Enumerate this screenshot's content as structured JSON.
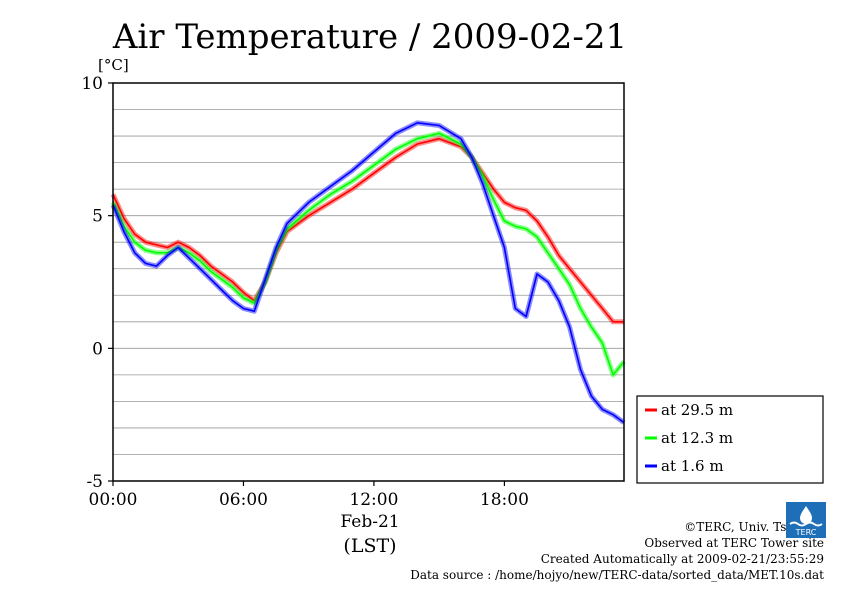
{
  "chart_data": {
    "type": "line",
    "title": "Air Temperature / 2009-02-21",
    "ylabel": "[°C]",
    "xlabel_lines": [
      "Feb-21",
      "(LST)"
    ],
    "x_ticks": [
      "00:00",
      "06:00",
      "12:00",
      "18:00"
    ],
    "x_tick_hours": [
      0,
      6,
      12,
      18
    ],
    "xlim_hours": [
      0,
      23.5
    ],
    "ylim": [
      -5,
      10
    ],
    "y_ticks": [
      10,
      5,
      0,
      -5
    ],
    "grid": true,
    "legend_position": "right-bottom-outside",
    "series": [
      {
        "name": "at 29.5 m",
        "color": "#ff0000",
        "x_hours": [
          0,
          0.5,
          1,
          1.5,
          2,
          2.5,
          3,
          3.5,
          4,
          4.5,
          5,
          5.5,
          6,
          6.5,
          7,
          7.5,
          8,
          9,
          10,
          11,
          12,
          13,
          14,
          15,
          16,
          16.5,
          17,
          17.5,
          18,
          18.5,
          19,
          19.5,
          20,
          20.5,
          21,
          21.5,
          22,
          22.5,
          23,
          23.5
        ],
        "values": [
          5.8,
          4.9,
          4.3,
          4.0,
          3.9,
          3.8,
          4.0,
          3.8,
          3.5,
          3.1,
          2.8,
          2.5,
          2.1,
          1.8,
          2.5,
          3.6,
          4.4,
          5.0,
          5.5,
          6.0,
          6.6,
          7.2,
          7.7,
          7.9,
          7.6,
          7.2,
          6.6,
          6.0,
          5.5,
          5.3,
          5.2,
          4.8,
          4.2,
          3.5,
          3.0,
          2.5,
          2.0,
          1.5,
          1.0,
          1.0
        ]
      },
      {
        "name": "at 12.3 m",
        "color": "#00ff00",
        "x_hours": [
          0,
          0.5,
          1,
          1.5,
          2,
          2.5,
          3,
          3.5,
          4,
          4.5,
          5,
          5.5,
          6,
          6.5,
          7,
          7.5,
          8,
          9,
          10,
          11,
          12,
          13,
          14,
          15,
          16,
          16.5,
          17,
          17.5,
          18,
          18.5,
          19,
          19.5,
          20,
          20.5,
          21,
          21.5,
          22,
          22.5,
          23,
          23.5
        ],
        "values": [
          5.5,
          4.6,
          4.0,
          3.7,
          3.6,
          3.6,
          3.8,
          3.6,
          3.3,
          2.9,
          2.6,
          2.3,
          1.9,
          1.7,
          2.5,
          3.7,
          4.5,
          5.2,
          5.8,
          6.3,
          6.9,
          7.5,
          7.9,
          8.1,
          7.7,
          7.2,
          6.5,
          5.6,
          4.8,
          4.6,
          4.5,
          4.2,
          3.6,
          3.0,
          2.4,
          1.5,
          0.8,
          0.2,
          -1.0,
          -0.5
        ]
      },
      {
        "name": "at 1.6 m",
        "color": "#0000ff",
        "x_hours": [
          0,
          0.5,
          1,
          1.5,
          2,
          2.5,
          3,
          3.5,
          4,
          4.5,
          5,
          5.5,
          6,
          6.5,
          7,
          7.5,
          8,
          9,
          10,
          11,
          12,
          13,
          14,
          15,
          16,
          16.5,
          17,
          17.5,
          18,
          18.5,
          19,
          19.5,
          20,
          20.5,
          21,
          21.5,
          22,
          22.5,
          23,
          23.5
        ],
        "values": [
          5.4,
          4.4,
          3.6,
          3.2,
          3.1,
          3.5,
          3.8,
          3.4,
          3.0,
          2.6,
          2.2,
          1.8,
          1.5,
          1.4,
          2.6,
          3.8,
          4.7,
          5.5,
          6.1,
          6.7,
          7.4,
          8.1,
          8.5,
          8.4,
          7.9,
          7.2,
          6.2,
          5.0,
          3.8,
          1.5,
          1.2,
          2.8,
          2.5,
          1.8,
          0.8,
          -0.8,
          -1.8,
          -2.3,
          -2.5,
          -2.8
        ]
      }
    ]
  },
  "credits": {
    "copyright": "©TERC, Univ. Tsukuba",
    "observed": "Observed at TERC Tower site",
    "created": "Created Automatically at 2009-02-21/23:55:29",
    "source": "Data source : /home/hojyo/new/TERC-data/sorted_data/MET.10s.dat"
  },
  "logo_text": "TERC"
}
